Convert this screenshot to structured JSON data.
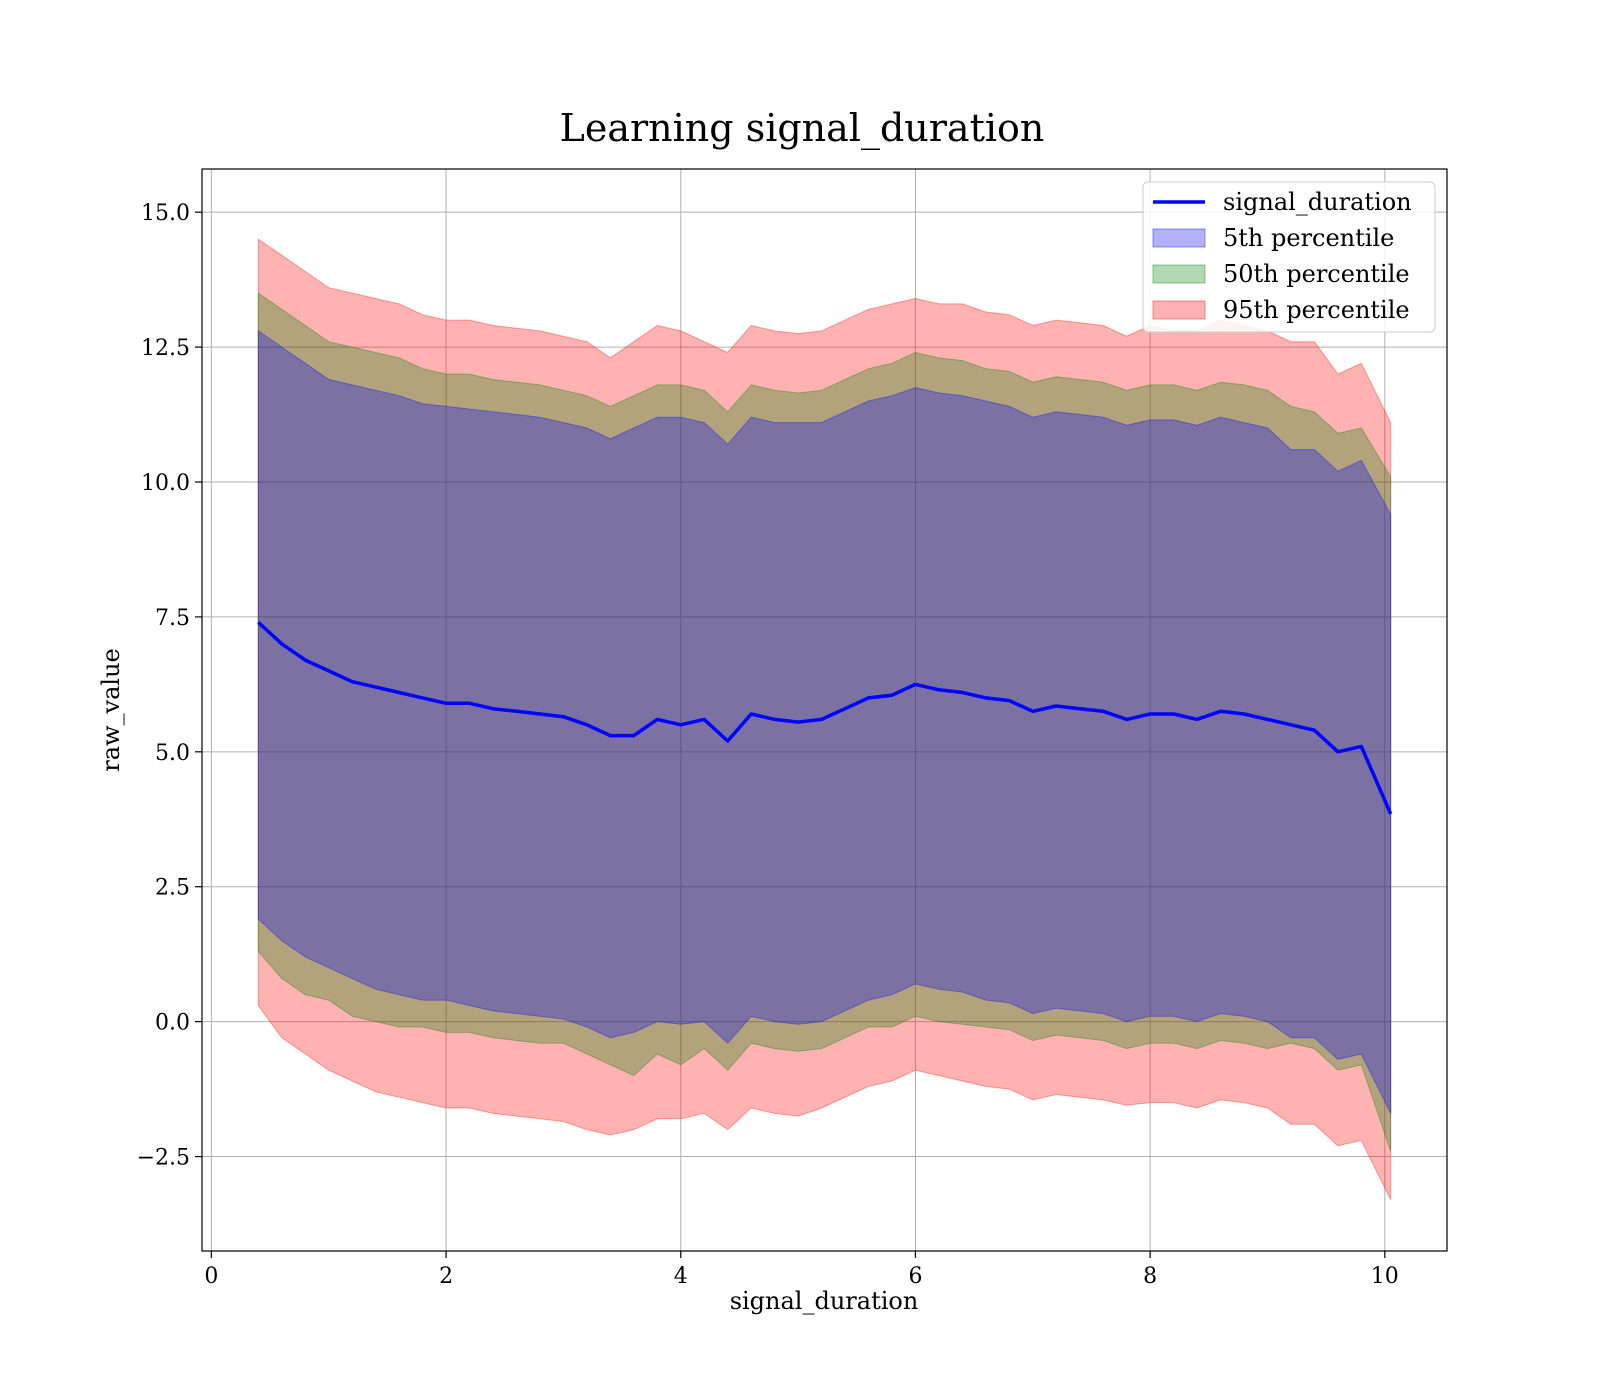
{
  "chart_data": {
    "type": "area",
    "title": "Learning signal_duration",
    "xlabel": "signal_duration",
    "ylabel": "raw_value",
    "xlim": [
      -0.08,
      10.53
    ],
    "ylim": [
      -4.25,
      15.8
    ],
    "x_ticks": [
      0,
      2,
      4,
      6,
      8,
      10
    ],
    "x_tick_labels": [
      "0",
      "2",
      "4",
      "6",
      "8",
      "10"
    ],
    "y_ticks": [
      -2.5,
      0.0,
      2.5,
      5.0,
      7.5,
      10.0,
      12.5,
      15.0
    ],
    "y_tick_labels": [
      "−2.5",
      "0.0",
      "2.5",
      "5.0",
      "7.5",
      "10.0",
      "12.5",
      "15.0"
    ],
    "grid": true,
    "legend_position": "top-right",
    "legend": [
      {
        "label": "signal_duration",
        "kind": "line",
        "color": "#0000ff"
      },
      {
        "label": "5th percentile",
        "kind": "band",
        "color": "#0000ff"
      },
      {
        "label": "50th percentile",
        "kind": "band",
        "color": "#008000"
      },
      {
        "label": "95th percentile",
        "kind": "band",
        "color": "#ff0000"
      }
    ],
    "x": [
      0.4,
      0.6,
      0.8,
      1.0,
      1.2,
      1.4,
      1.6,
      1.8,
      2.0,
      2.2,
      2.4,
      2.6,
      2.8,
      3.0,
      3.2,
      3.4,
      3.6,
      3.8,
      4.0,
      4.2,
      4.4,
      4.6,
      4.8,
      5.0,
      5.2,
      5.4,
      5.6,
      5.8,
      6.0,
      6.2,
      6.4,
      6.6,
      6.8,
      7.0,
      7.2,
      7.4,
      7.6,
      7.8,
      8.0,
      8.2,
      8.4,
      8.6,
      8.8,
      9.0,
      9.2,
      9.4,
      9.6,
      9.8,
      10.05
    ],
    "series": [
      {
        "name": "signal_duration",
        "kind": "line",
        "color": "#0000ff",
        "values": [
          7.4,
          7.0,
          6.7,
          6.5,
          6.3,
          6.2,
          6.1,
          6.0,
          5.9,
          5.9,
          5.8,
          5.75,
          5.7,
          5.65,
          5.5,
          5.3,
          5.3,
          5.6,
          5.5,
          5.6,
          5.2,
          5.7,
          5.6,
          5.55,
          5.6,
          5.8,
          6.0,
          6.05,
          6.25,
          6.15,
          6.1,
          6.0,
          5.95,
          5.75,
          5.85,
          5.8,
          5.75,
          5.6,
          5.7,
          5.7,
          5.6,
          5.75,
          5.7,
          5.6,
          5.5,
          5.4,
          5.0,
          5.1,
          3.85
        ]
      },
      {
        "name": "95th percentile",
        "kind": "band",
        "color": "#ff0000",
        "upper": [
          14.5,
          14.2,
          13.9,
          13.6,
          13.5,
          13.4,
          13.3,
          13.1,
          13.0,
          13.0,
          12.9,
          12.85,
          12.8,
          12.7,
          12.6,
          12.3,
          12.6,
          12.9,
          12.8,
          12.6,
          12.4,
          12.9,
          12.8,
          12.75,
          12.8,
          13.0,
          13.2,
          13.3,
          13.4,
          13.3,
          13.3,
          13.15,
          13.1,
          12.9,
          13.0,
          12.95,
          12.9,
          12.7,
          12.9,
          12.8,
          12.8,
          13.0,
          12.9,
          12.8,
          12.6,
          12.6,
          12.0,
          12.2,
          11.1
        ],
        "lower": [
          0.3,
          -0.3,
          -0.6,
          -0.9,
          -1.1,
          -1.3,
          -1.4,
          -1.5,
          -1.6,
          -1.6,
          -1.7,
          -1.75,
          -1.8,
          -1.85,
          -2.0,
          -2.1,
          -2.0,
          -1.8,
          -1.8,
          -1.7,
          -2.0,
          -1.6,
          -1.7,
          -1.75,
          -1.6,
          -1.4,
          -1.2,
          -1.1,
          -0.9,
          -1.0,
          -1.1,
          -1.2,
          -1.25,
          -1.45,
          -1.35,
          -1.4,
          -1.45,
          -1.55,
          -1.5,
          -1.5,
          -1.6,
          -1.45,
          -1.5,
          -1.6,
          -1.9,
          -1.9,
          -2.3,
          -2.2,
          -3.3
        ]
      },
      {
        "name": "50th percentile",
        "kind": "band",
        "color": "#008000",
        "upper": [
          13.5,
          13.2,
          12.9,
          12.6,
          12.5,
          12.4,
          12.3,
          12.1,
          12.0,
          12.0,
          11.9,
          11.85,
          11.8,
          11.7,
          11.6,
          11.4,
          11.6,
          11.8,
          11.8,
          11.7,
          11.3,
          11.8,
          11.7,
          11.65,
          11.7,
          11.9,
          12.1,
          12.2,
          12.4,
          12.3,
          12.25,
          12.1,
          12.05,
          11.85,
          11.95,
          11.9,
          11.85,
          11.7,
          11.8,
          11.8,
          11.7,
          11.85,
          11.8,
          11.7,
          11.4,
          11.3,
          10.9,
          11.0,
          10.1
        ]
      },
      {
        "name": "5th percentile",
        "kind": "band",
        "color": "#0000ff",
        "upper": [
          12.8,
          12.5,
          12.2,
          11.9,
          11.8,
          11.7,
          11.6,
          11.45,
          11.4,
          11.35,
          11.3,
          11.25,
          11.2,
          11.1,
          11.0,
          10.8,
          11.0,
          11.2,
          11.2,
          11.1,
          10.7,
          11.2,
          11.1,
          11.1,
          11.1,
          11.3,
          11.5,
          11.6,
          11.75,
          11.65,
          11.6,
          11.5,
          11.4,
          11.2,
          11.3,
          11.25,
          11.2,
          11.05,
          11.15,
          11.15,
          11.05,
          11.2,
          11.1,
          11.0,
          10.6,
          10.6,
          10.2,
          10.4,
          9.4
        ],
        "lower": [
          1.9,
          1.5,
          1.2,
          1.0,
          0.8,
          0.6,
          0.5,
          0.4,
          0.4,
          0.3,
          0.2,
          0.15,
          0.1,
          0.05,
          -0.1,
          -0.3,
          -0.2,
          0.0,
          -0.05,
          0.0,
          -0.4,
          0.1,
          0.0,
          -0.05,
          0.0,
          0.2,
          0.4,
          0.5,
          0.7,
          0.6,
          0.55,
          0.4,
          0.35,
          0.15,
          0.25,
          0.2,
          0.15,
          0.0,
          0.1,
          0.1,
          0.0,
          0.15,
          0.1,
          0.0,
          -0.3,
          -0.3,
          -0.7,
          -0.6,
          -1.7
        ]
      }
    ]
  }
}
